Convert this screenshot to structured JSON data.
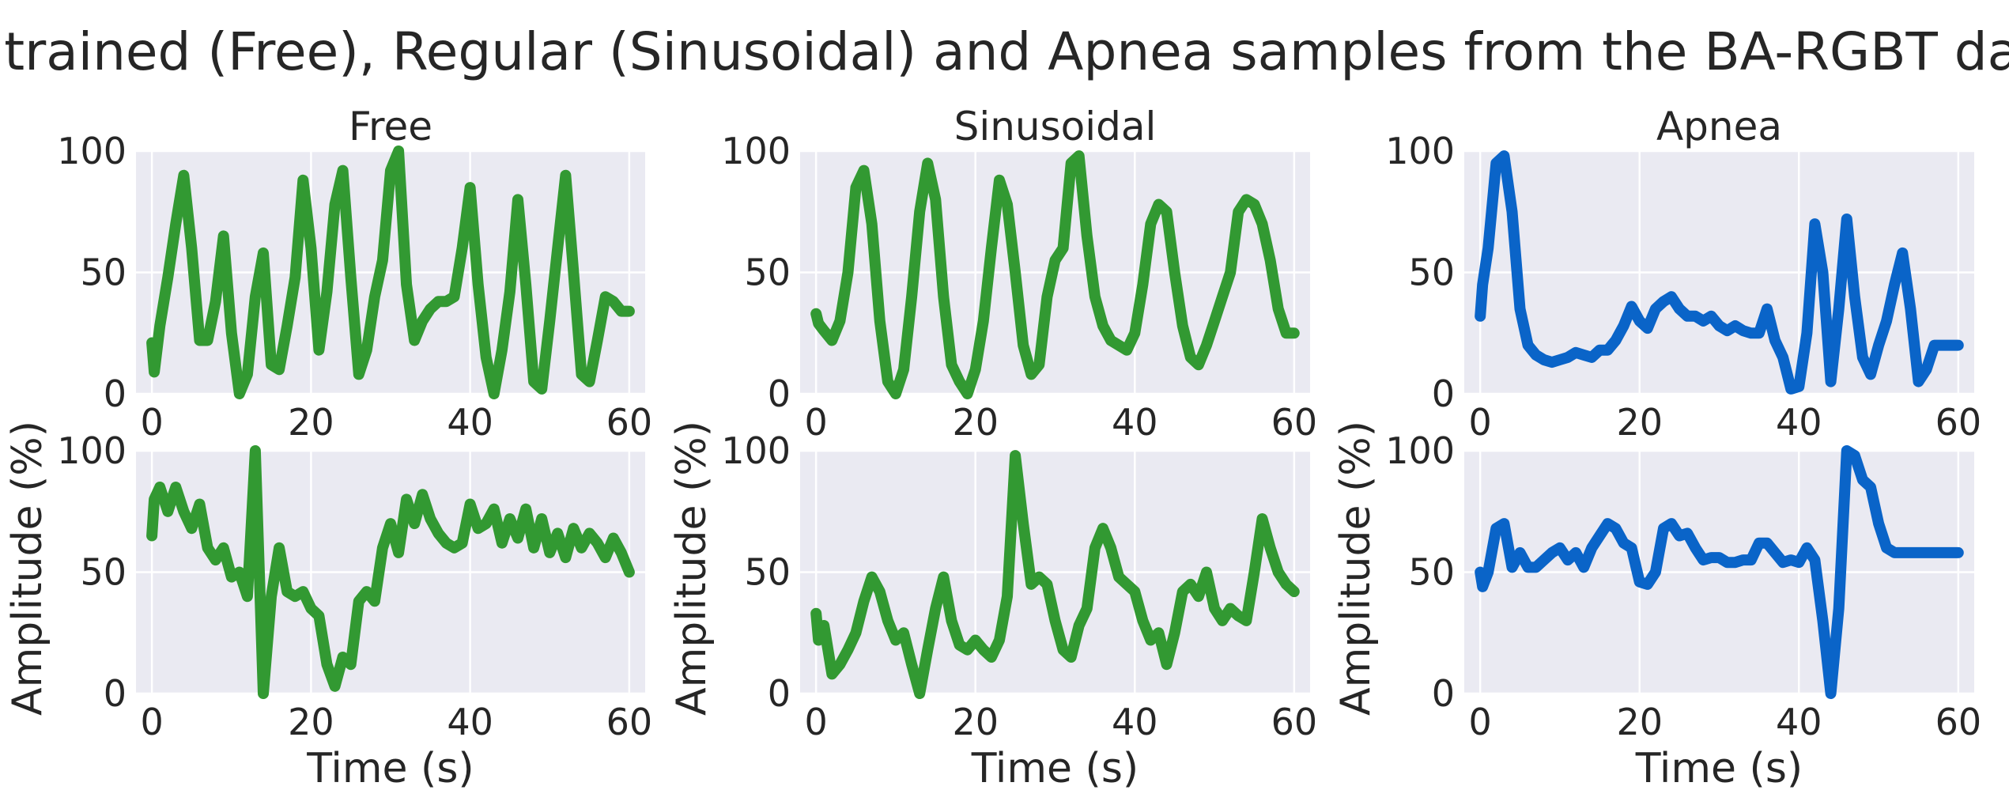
{
  "figure_title": "Unscontrained (Free), Regular (Sinusoidal) and Apnea samples from the BA-RGBT database",
  "colors": {
    "green": "#329932",
    "blue": "#0a64c8",
    "panel_bg": "#eaeaf2",
    "grid": "#ffffff",
    "text": "#262626"
  },
  "chart_data": [
    {
      "type": "line",
      "title": "Free",
      "xlabel": "",
      "ylabel": "",
      "xlim": [
        -2,
        62
      ],
      "ylim": [
        0,
        100
      ],
      "xticks": [
        "0",
        "20",
        "40",
        "60"
      ],
      "yticks": [
        "0",
        "50",
        "100"
      ],
      "grid": true,
      "color": "#329932",
      "series": [
        {
          "x": [
            0,
            0.3,
            1,
            2,
            3,
            4,
            5,
            6,
            7,
            8,
            9,
            10,
            11,
            12,
            13,
            14,
            15,
            16,
            17,
            18,
            19,
            20,
            21,
            22,
            23,
            24,
            25,
            26,
            27,
            28,
            29,
            30,
            31,
            32,
            33,
            34,
            35,
            36,
            37,
            38,
            39,
            40,
            41,
            42,
            43,
            44,
            45,
            46,
            47,
            48,
            49,
            50,
            51,
            52,
            53,
            54,
            55,
            56,
            57,
            58,
            59,
            60
          ],
          "y": [
            21,
            9,
            28,
            48,
            70,
            90,
            60,
            22,
            22,
            38,
            65,
            25,
            0,
            8,
            40,
            58,
            12,
            10,
            28,
            48,
            88,
            60,
            18,
            42,
            78,
            92,
            48,
            8,
            18,
            40,
            55,
            92,
            100,
            45,
            22,
            30,
            35,
            38,
            38,
            40,
            60,
            85,
            45,
            15,
            0,
            18,
            42,
            80,
            45,
            5,
            2,
            30,
            60,
            90,
            50,
            8,
            5,
            22,
            40,
            38,
            34,
            34
          ]
        }
      ]
    },
    {
      "type": "line",
      "title": "Sinusoidal",
      "xlabel": "",
      "ylabel": "",
      "xlim": [
        -2,
        62
      ],
      "ylim": [
        0,
        100
      ],
      "xticks": [
        "0",
        "20",
        "40",
        "60"
      ],
      "yticks": [
        "0",
        "50",
        "100"
      ],
      "grid": true,
      "color": "#329932",
      "series": [
        {
          "x": [
            0,
            0.3,
            1,
            2,
            3,
            4,
            5,
            6,
            7,
            8,
            9,
            10,
            11,
            12,
            13,
            14,
            15,
            16,
            17,
            18,
            19,
            20,
            21,
            22,
            23,
            24,
            25,
            26,
            27,
            28,
            29,
            30,
            31,
            32,
            33,
            34,
            35,
            36,
            37,
            38,
            39,
            40,
            41,
            42,
            43,
            44,
            45,
            46,
            47,
            48,
            49,
            50,
            51,
            52,
            53,
            54,
            55,
            56,
            57,
            58,
            59,
            60
          ],
          "y": [
            33,
            29,
            26,
            22,
            30,
            50,
            85,
            92,
            70,
            30,
            5,
            0,
            10,
            40,
            75,
            95,
            80,
            40,
            12,
            5,
            0,
            10,
            30,
            60,
            88,
            78,
            50,
            20,
            8,
            12,
            40,
            55,
            60,
            95,
            98,
            65,
            40,
            28,
            22,
            20,
            18,
            25,
            45,
            70,
            78,
            75,
            50,
            28,
            15,
            12,
            20,
            30,
            40,
            50,
            75,
            80,
            78,
            70,
            55,
            35,
            25,
            25
          ]
        }
      ]
    },
    {
      "type": "line",
      "title": "Apnea",
      "xlabel": "",
      "ylabel": "",
      "xlim": [
        -2,
        62
      ],
      "ylim": [
        0,
        100
      ],
      "xticks": [
        "0",
        "20",
        "40",
        "60"
      ],
      "yticks": [
        "0",
        "50",
        "100"
      ],
      "grid": true,
      "color": "#0a64c8",
      "series": [
        {
          "x": [
            0,
            0.3,
            1,
            2,
            3,
            4,
            5,
            6,
            7,
            8,
            9,
            10,
            11,
            12,
            13,
            14,
            15,
            16,
            17,
            18,
            19,
            20,
            21,
            22,
            23,
            24,
            25,
            26,
            27,
            28,
            29,
            30,
            31,
            32,
            33,
            34,
            35,
            36,
            37,
            38,
            39,
            40,
            41,
            42,
            43,
            44,
            45,
            46,
            47,
            48,
            49,
            50,
            51,
            52,
            53,
            54,
            55,
            56,
            57,
            58,
            59,
            60
          ],
          "y": [
            32,
            45,
            60,
            95,
            98,
            75,
            35,
            20,
            16,
            14,
            13,
            14,
            15,
            17,
            16,
            15,
            18,
            18,
            22,
            28,
            36,
            30,
            27,
            35,
            38,
            40,
            35,
            32,
            32,
            30,
            32,
            28,
            26,
            28,
            26,
            25,
            25,
            35,
            22,
            15,
            2,
            3,
            25,
            70,
            50,
            5,
            35,
            72,
            40,
            15,
            8,
            20,
            30,
            45,
            58,
            35,
            5,
            10,
            20,
            20,
            20,
            20
          ]
        }
      ]
    },
    {
      "type": "line",
      "title": "",
      "xlabel": "Time (s)",
      "ylabel": "Amplitude (%)",
      "xlim": [
        -2,
        62
      ],
      "ylim": [
        0,
        100
      ],
      "xticks": [
        "0",
        "20",
        "40",
        "60"
      ],
      "yticks": [
        "0",
        "50",
        "100"
      ],
      "grid": true,
      "color": "#329932",
      "series": [
        {
          "x": [
            0,
            0.3,
            1,
            2,
            3,
            4,
            5,
            6,
            7,
            8,
            9,
            10,
            11,
            12,
            13,
            14,
            15,
            16,
            17,
            18,
            19,
            20,
            21,
            22,
            23,
            24,
            25,
            26,
            27,
            28,
            29,
            30,
            31,
            32,
            33,
            34,
            35,
            36,
            37,
            38,
            39,
            40,
            41,
            42,
            43,
            44,
            45,
            46,
            47,
            48,
            49,
            50,
            51,
            52,
            53,
            54,
            55,
            56,
            57,
            58,
            59,
            60
          ],
          "y": [
            65,
            80,
            85,
            75,
            85,
            75,
            68,
            78,
            60,
            55,
            60,
            48,
            50,
            40,
            100,
            0,
            40,
            60,
            42,
            40,
            42,
            35,
            32,
            12,
            3,
            15,
            12,
            38,
            42,
            38,
            60,
            70,
            58,
            80,
            70,
            82,
            72,
            66,
            62,
            60,
            62,
            78,
            68,
            70,
            76,
            62,
            72,
            64,
            76,
            60,
            72,
            58,
            66,
            56,
            68,
            60,
            66,
            62,
            56,
            64,
            58,
            50
          ]
        }
      ]
    },
    {
      "type": "line",
      "title": "",
      "xlabel": "Time (s)",
      "ylabel": "Amplitude (%)",
      "xlim": [
        -2,
        62
      ],
      "ylim": [
        0,
        100
      ],
      "xticks": [
        "0",
        "20",
        "40",
        "60"
      ],
      "yticks": [
        "0",
        "50",
        "100"
      ],
      "grid": true,
      "color": "#329932",
      "series": [
        {
          "x": [
            0,
            0.3,
            1,
            2,
            3,
            4,
            5,
            6,
            7,
            8,
            9,
            10,
            11,
            12,
            13,
            14,
            15,
            16,
            17,
            18,
            19,
            20,
            21,
            22,
            23,
            24,
            25,
            26,
            27,
            28,
            29,
            30,
            31,
            32,
            33,
            34,
            35,
            36,
            37,
            38,
            39,
            40,
            41,
            42,
            43,
            44,
            45,
            46,
            47,
            48,
            49,
            50,
            51,
            52,
            53,
            54,
            55,
            56,
            57,
            58,
            59,
            60
          ],
          "y": [
            33,
            22,
            28,
            8,
            12,
            18,
            25,
            38,
            48,
            42,
            30,
            22,
            25,
            12,
            0,
            18,
            35,
            48,
            30,
            20,
            18,
            22,
            18,
            15,
            22,
            40,
            98,
            70,
            45,
            48,
            45,
            30,
            18,
            15,
            28,
            35,
            60,
            68,
            60,
            48,
            45,
            42,
            30,
            22,
            25,
            12,
            25,
            42,
            45,
            40,
            50,
            35,
            30,
            35,
            32,
            30,
            50,
            72,
            60,
            50,
            45,
            42
          ]
        }
      ]
    },
    {
      "type": "line",
      "title": "",
      "xlabel": "Time (s)",
      "ylabel": "Amplitude (%)",
      "xlim": [
        -2,
        62
      ],
      "ylim": [
        0,
        100
      ],
      "xticks": [
        "0",
        "20",
        "40",
        "60"
      ],
      "yticks": [
        "0",
        "50",
        "100"
      ],
      "grid": true,
      "color": "#0a64c8",
      "series": [
        {
          "x": [
            0,
            0.3,
            1,
            2,
            3,
            4,
            5,
            6,
            7,
            8,
            9,
            10,
            11,
            12,
            13,
            14,
            15,
            16,
            17,
            18,
            19,
            20,
            21,
            22,
            23,
            24,
            25,
            26,
            27,
            28,
            29,
            30,
            31,
            32,
            33,
            34,
            35,
            36,
            37,
            38,
            39,
            40,
            41,
            42,
            43,
            44,
            45,
            46,
            47,
            48,
            49,
            50,
            51,
            52,
            53,
            54,
            55,
            56,
            57,
            58,
            59,
            60
          ],
          "y": [
            50,
            44,
            50,
            68,
            70,
            52,
            58,
            52,
            52,
            55,
            58,
            60,
            55,
            58,
            52,
            60,
            65,
            70,
            68,
            62,
            60,
            46,
            45,
            50,
            68,
            70,
            65,
            66,
            60,
            55,
            56,
            56,
            54,
            54,
            55,
            55,
            62,
            62,
            58,
            54,
            55,
            54,
            60,
            55,
            30,
            0,
            35,
            100,
            98,
            88,
            85,
            70,
            60,
            58,
            58,
            58,
            58,
            58,
            58,
            58,
            58,
            58
          ]
        }
      ]
    }
  ]
}
